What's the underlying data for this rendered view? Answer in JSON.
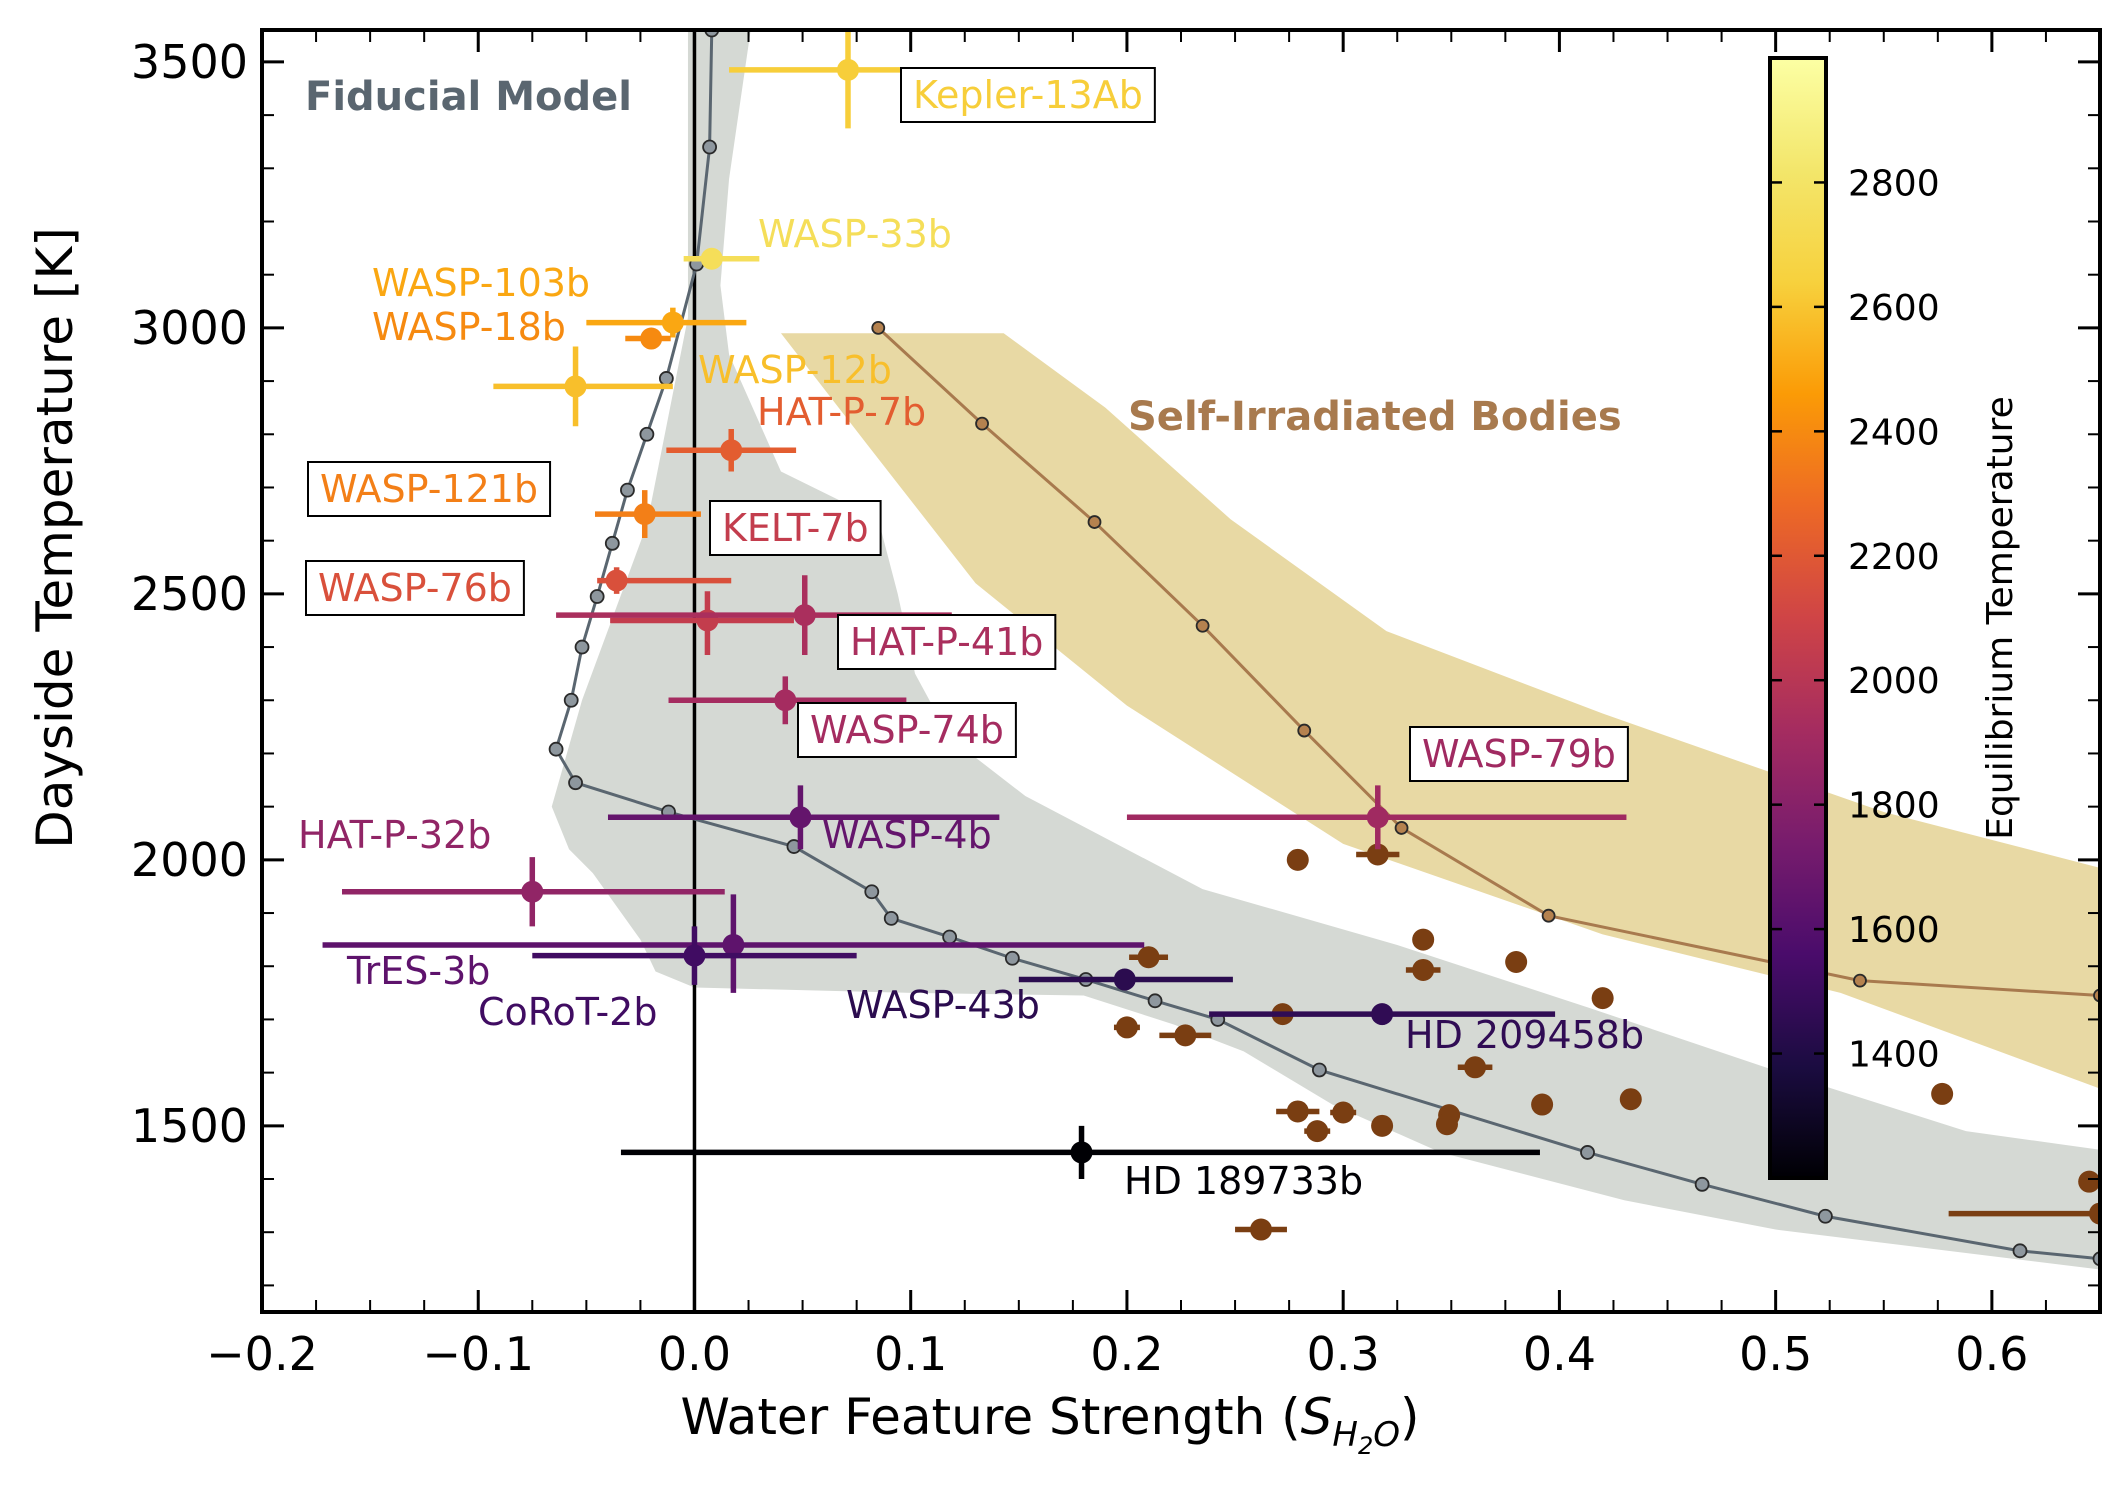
{
  "chart_data": {
    "type": "scatter",
    "xlabel_prefix": "Water Feature Strength (",
    "xlabel_symbol": "S",
    "xlabel_subscript": "H",
    "xlabel_subsubscript": "2",
    "xlabel_subscript_tail": "O",
    "xlabel_suffix": ")",
    "ylabel": "Dayside Temperature [K]",
    "xlim": [
      -0.2,
      0.65
    ],
    "ylim": [
      1150,
      3560
    ],
    "xticks": [
      -0.2,
      -0.1,
      0.0,
      0.1,
      0.2,
      0.3,
      0.4,
      0.5,
      0.6
    ],
    "xtick_labels": [
      "−0.2",
      "−0.1",
      "0.0",
      "0.1",
      "0.2",
      "0.3",
      "0.4",
      "0.5",
      "0.6"
    ],
    "yticks": [
      1500,
      2000,
      2500,
      3000,
      3500
    ],
    "ytick_labels": [
      "1500",
      "2000",
      "2500",
      "3000",
      "3500"
    ],
    "zero_line_x": 0.0,
    "colorbar": {
      "label": "Equilibrium Temperature",
      "range": [
        1200,
        3000
      ],
      "ticks": [
        1400,
        1600,
        1800,
        2000,
        2200,
        2400,
        2600,
        2800
      ],
      "tick_labels": [
        "1400",
        "1600",
        "1800",
        "2000",
        "2200",
        "2400",
        "2600",
        "2800"
      ],
      "colormap": "inferno"
    },
    "fiducial_model": {
      "label": "Fiducial Model",
      "color": "#5a6670",
      "band_color": "#d5d9d4",
      "points": [
        [
          0.008,
          3560
        ],
        [
          0.007,
          3340
        ],
        [
          0.001,
          3120
        ],
        [
          -0.013,
          2905
        ],
        [
          -0.022,
          2800
        ],
        [
          -0.031,
          2695
        ],
        [
          -0.038,
          2595
        ],
        [
          -0.045,
          2495
        ],
        [
          -0.052,
          2400
        ],
        [
          -0.057,
          2300
        ],
        [
          -0.064,
          2208
        ],
        [
          -0.055,
          2145
        ],
        [
          -0.012,
          2090
        ],
        [
          0.046,
          2025
        ],
        [
          0.082,
          1940
        ],
        [
          0.091,
          1890
        ],
        [
          0.118,
          1855
        ],
        [
          0.147,
          1815
        ],
        [
          0.181,
          1775
        ],
        [
          0.213,
          1735
        ],
        [
          0.242,
          1700
        ],
        [
          0.289,
          1605
        ],
        [
          0.413,
          1450
        ],
        [
          0.466,
          1390
        ],
        [
          0.523,
          1330
        ],
        [
          0.613,
          1265
        ],
        [
          0.65,
          1250
        ]
      ],
      "band": [
        [
          -0.003,
          3560
        ],
        [
          0.026,
          3560
        ],
        [
          0.016,
          3280
        ],
        [
          0.012,
          3080
        ],
        [
          0.016,
          2950
        ],
        [
          0.04,
          2730
        ],
        [
          0.085,
          2640
        ],
        [
          0.094,
          2500
        ],
        [
          0.102,
          2350
        ],
        [
          0.118,
          2230
        ],
        [
          0.153,
          2120
        ],
        [
          0.235,
          1945
        ],
        [
          0.325,
          1840
        ],
        [
          0.415,
          1720
        ],
        [
          0.499,
          1605
        ],
        [
          0.588,
          1490
        ],
        [
          0.65,
          1455
        ],
        [
          0.65,
          1230
        ],
        [
          0.5,
          1305
        ],
        [
          0.43,
          1360
        ],
        [
          0.345,
          1450
        ],
        [
          0.295,
          1540
        ],
        [
          0.254,
          1640
        ],
        [
          0.222,
          1690
        ],
        [
          0.18,
          1745
        ],
        [
          0.1,
          1750
        ],
        [
          0.0,
          1760
        ],
        [
          -0.018,
          1790
        ],
        [
          -0.025,
          1850
        ],
        [
          -0.047,
          1975
        ],
        [
          -0.058,
          2020
        ],
        [
          -0.066,
          2100
        ],
        [
          -0.052,
          2300
        ],
        [
          -0.022,
          2630
        ],
        [
          -0.003,
          3020
        ]
      ]
    },
    "self_irradiated_model": {
      "label": "Self-Irradiated Bodies",
      "color": "#a87a4e",
      "band_color": "#e8d9a4",
      "points": [
        [
          0.085,
          3000
        ],
        [
          0.133,
          2820
        ],
        [
          0.185,
          2635
        ],
        [
          0.235,
          2440
        ],
        [
          0.282,
          2243
        ],
        [
          0.327,
          2060
        ],
        [
          0.395,
          1895
        ],
        [
          0.539,
          1773
        ],
        [
          0.65,
          1745
        ]
      ],
      "band": [
        [
          0.04,
          2990
        ],
        [
          0.143,
          2990
        ],
        [
          0.19,
          2850
        ],
        [
          0.248,
          2640
        ],
        [
          0.32,
          2430
        ],
        [
          0.42,
          2275
        ],
        [
          0.55,
          2090
        ],
        [
          0.65,
          1985
        ],
        [
          0.65,
          1570
        ],
        [
          0.53,
          1750
        ],
        [
          0.42,
          1860
        ],
        [
          0.3,
          2030
        ],
        [
          0.2,
          2290
        ],
        [
          0.13,
          2520
        ],
        [
          0.08,
          2780
        ]
      ]
    },
    "planets": [
      {
        "name": "Kepler-13Ab",
        "x": 0.071,
        "y": 3485,
        "xerr": [
          0.055,
          0.063
        ],
        "yerr": [
          110,
          75
        ],
        "teq": 2630,
        "boxed": true
      },
      {
        "name": "WASP-33b",
        "x": 0.008,
        "y": 3130,
        "xerr": [
          0.013,
          0.022
        ],
        "yerr": [
          18,
          18
        ],
        "teq": 2750,
        "boxed": false
      },
      {
        "name": "WASP-103b",
        "x": -0.01,
        "y": 3010,
        "xerr": [
          0.04,
          0.034
        ],
        "yerr": [
          28,
          28
        ],
        "teq": 2500,
        "boxed": false
      },
      {
        "name": "WASP-18b",
        "x": -0.02,
        "y": 2980,
        "xerr": [
          0.012,
          0.009
        ],
        "yerr": [
          15,
          15
        ],
        "teq": 2400,
        "boxed": false
      },
      {
        "name": "WASP-12b",
        "x": -0.055,
        "y": 2890,
        "xerr": [
          0.038,
          0.045
        ],
        "yerr": [
          75,
          75
        ],
        "teq": 2580,
        "boxed": false
      },
      {
        "name": "HAT-P-7b",
        "x": 0.017,
        "y": 2770,
        "xerr": [
          0.03,
          0.03
        ],
        "yerr": [
          40,
          40
        ],
        "teq": 2220,
        "boxed": false
      },
      {
        "name": "WASP-121b",
        "x": -0.023,
        "y": 2650,
        "xerr": [
          0.023,
          0.026
        ],
        "yerr": [
          45,
          45
        ],
        "teq": 2360,
        "boxed": true
      },
      {
        "name": "KELT-7b",
        "x": 0.006,
        "y": 2450,
        "xerr": [
          0.045,
          0.04
        ],
        "yerr": [
          65,
          55
        ],
        "teq": 2050,
        "boxed": true
      },
      {
        "name": "WASP-76b",
        "x": -0.036,
        "y": 2525,
        "xerr": [
          0.009,
          0.053
        ],
        "yerr": [
          25,
          25
        ],
        "teq": 2160,
        "boxed": true
      },
      {
        "name": "HAT-P-41b",
        "x": 0.051,
        "y": 2460,
        "xerr": [
          0.115,
          0.068
        ],
        "yerr": [
          75,
          75
        ],
        "teq": 1940,
        "boxed": true
      },
      {
        "name": "WASP-74b",
        "x": 0.042,
        "y": 2300,
        "xerr": [
          0.054,
          0.056
        ],
        "yerr": [
          45,
          45
        ],
        "teq": 1920,
        "boxed": true
      },
      {
        "name": "WASP-79b",
        "x": 0.316,
        "y": 2080,
        "xerr": [
          0.116,
          0.115
        ],
        "yerr": [
          60,
          60
        ],
        "teq": 1900,
        "boxed": true
      },
      {
        "name": "WASP-4b",
        "x": 0.049,
        "y": 2080,
        "xerr": [
          0.089,
          0.092
        ],
        "yerr": [
          60,
          60
        ],
        "teq": 1660,
        "boxed": false
      },
      {
        "name": "HAT-P-32b",
        "x": -0.075,
        "y": 1940,
        "xerr": [
          0.088,
          0.089
        ],
        "yerr": [
          65,
          65
        ],
        "teq": 1840,
        "boxed": false
      },
      {
        "name": "TrES-3b",
        "x": 0.018,
        "y": 1840,
        "xerr": [
          0.19,
          0.19
        ],
        "yerr": [
          90,
          95
        ],
        "teq": 1640,
        "boxed": false
      },
      {
        "name": "CoRoT-2b",
        "x": 0.0,
        "y": 1820,
        "xerr": [
          0.075,
          0.075
        ],
        "yerr": [
          55,
          55
        ],
        "teq": 1520,
        "boxed": false
      },
      {
        "name": "WASP-43b",
        "x": 0.199,
        "y": 1775,
        "xerr": [
          0.049,
          0.05
        ],
        "yerr": [
          20,
          20
        ],
        "teq": 1440,
        "boxed": false
      },
      {
        "name": "HD 209458b",
        "x": 0.318,
        "y": 1710,
        "xerr": [
          0.08,
          0.08
        ],
        "yerr": [
          20,
          20
        ],
        "teq": 1460,
        "boxed": false
      },
      {
        "name": "HD 189733b",
        "x": 0.179,
        "y": 1450,
        "xerr": [
          0.213,
          0.212
        ],
        "yerr": [
          50,
          50
        ],
        "teq": 1200,
        "boxed": false
      }
    ],
    "self_irradiated_objects": {
      "color": "#7a3e12",
      "points": [
        [
          0.279,
          2000,
          0.0
        ],
        [
          0.316,
          2010,
          0.01
        ],
        [
          0.337,
          1850,
          0.0
        ],
        [
          0.337,
          1793,
          0.008
        ],
        [
          0.38,
          1808,
          0.0
        ],
        [
          0.21,
          1817,
          0.009
        ],
        [
          0.42,
          1740,
          0.0
        ],
        [
          0.272,
          1710,
          0.0
        ],
        [
          0.2,
          1685,
          0.006
        ],
        [
          0.227,
          1670,
          0.012
        ],
        [
          0.361,
          1610,
          0.008
        ],
        [
          0.577,
          1560,
          0.0
        ],
        [
          0.433,
          1550,
          0.0
        ],
        [
          0.392,
          1540,
          0.0
        ],
        [
          0.279,
          1527,
          0.01
        ],
        [
          0.3,
          1525,
          0.006
        ],
        [
          0.349,
          1520,
          0.0
        ],
        [
          0.348,
          1503,
          0.0
        ],
        [
          0.318,
          1500,
          0.0
        ],
        [
          0.288,
          1490,
          0.006
        ],
        [
          0.645,
          1395,
          0.0
        ],
        [
          0.262,
          1305,
          0.012
        ],
        [
          0.65,
          1335,
          0.07
        ]
      ]
    }
  }
}
